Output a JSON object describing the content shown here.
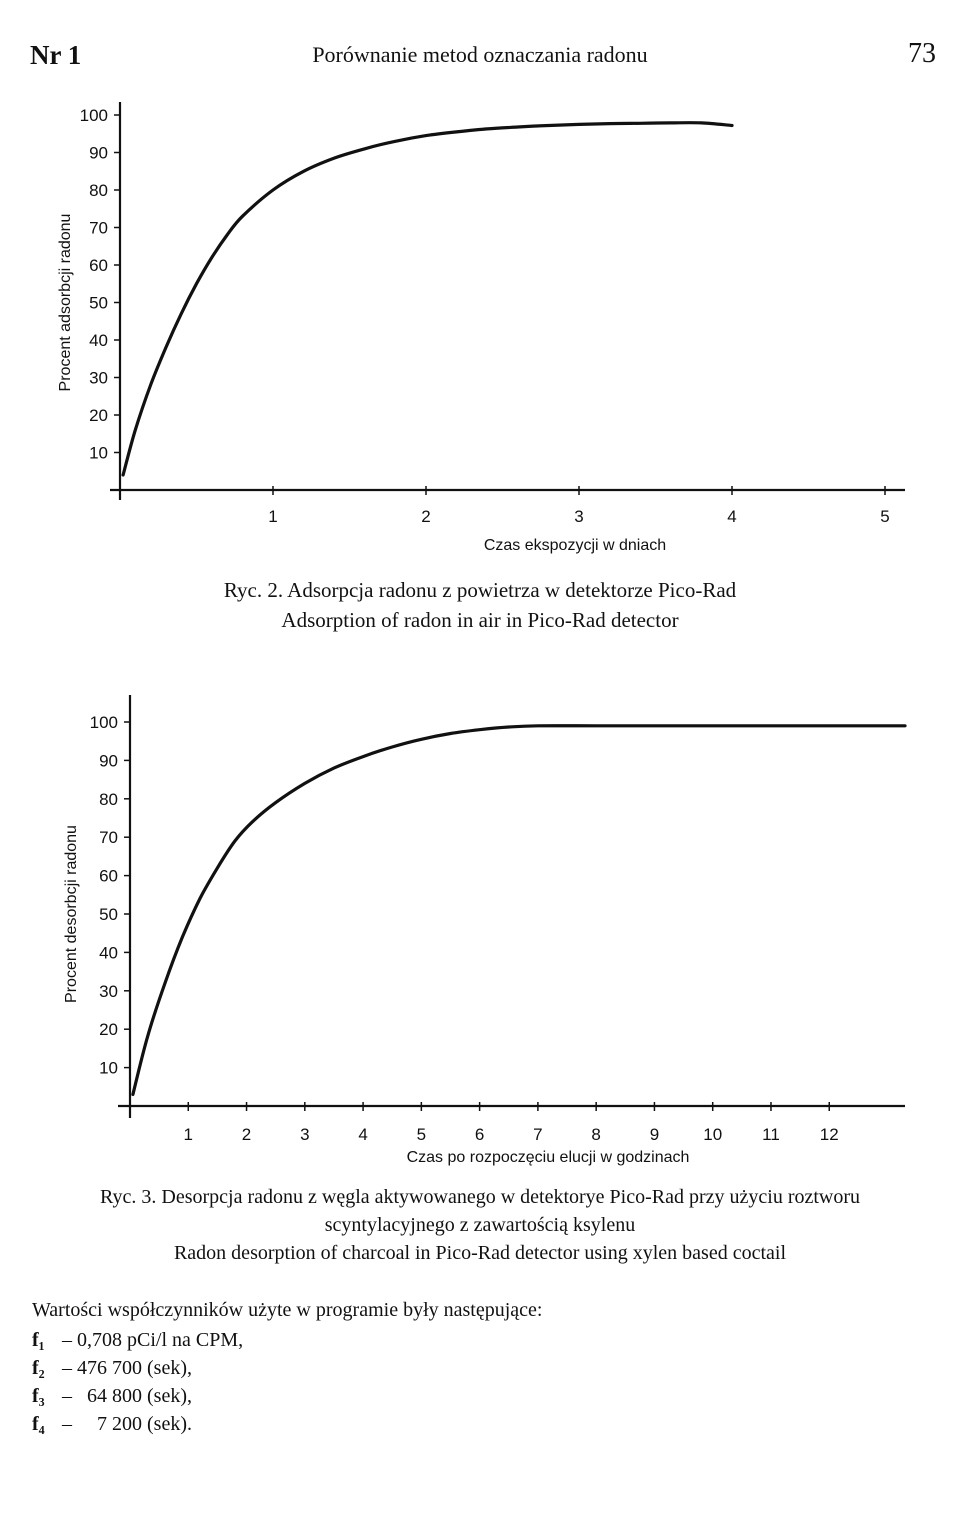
{
  "header": {
    "issue": "Nr 1",
    "running_title": "Porównanie metod oznaczania radonu",
    "page_number": "73"
  },
  "chart_data": [
    {
      "type": "line",
      "title": "",
      "xlabel": "Czas ekspozycji w dniach",
      "ylabel": "Procent adsorbcji radonu",
      "xlim": [
        0,
        5
      ],
      "ylim": [
        0,
        100
      ],
      "x_ticks": [
        "1",
        "2",
        "3",
        "4",
        "5"
      ],
      "y_ticks": [
        "10",
        "20",
        "30",
        "40",
        "50",
        "60",
        "70",
        "80",
        "90",
        "100"
      ],
      "grid": false,
      "series": [
        {
          "x": [
            0.02,
            0.1,
            0.2,
            0.3,
            0.4,
            0.5,
            0.6,
            0.7,
            0.8,
            1.0,
            1.2,
            1.4,
            1.6,
            1.8,
            2.0,
            2.2,
            2.4,
            2.6,
            2.8,
            3.0,
            3.2,
            3.4,
            3.6,
            3.8,
            4.0
          ],
          "y": [
            4,
            16,
            28,
            38,
            47,
            55,
            62,
            68,
            73,
            80,
            85,
            88.5,
            91,
            93,
            94.5,
            95.5,
            96.3,
            96.8,
            97.2,
            97.5,
            97.7,
            97.8,
            97.9,
            97.9,
            97.2
          ]
        }
      ],
      "caption_pl": "Ryc. 2. Adsorpcja radonu z powietrza w detektorze Pico-Rad",
      "caption_en": "Adsorption of radon in air in Pico-Rad detector"
    },
    {
      "type": "line",
      "title": "",
      "xlabel": "Czas po rozpoczęciu elucji w godzinach",
      "ylabel": "Procent desorbcji radonu",
      "xlim": [
        0,
        13.3
      ],
      "ylim": [
        0,
        100
      ],
      "x_ticks": [
        "1",
        "2",
        "3",
        "4",
        "5",
        "6",
        "7",
        "8",
        "9",
        "10",
        "11",
        "12"
      ],
      "y_ticks": [
        "10",
        "20",
        "30",
        "40",
        "50",
        "60",
        "70",
        "80",
        "90",
        "100"
      ],
      "grid": false,
      "series": [
        {
          "x": [
            0.05,
            0.3,
            0.6,
            0.9,
            1.2,
            1.5,
            1.8,
            2.1,
            2.5,
            3.0,
            3.5,
            4.0,
            4.5,
            5.0,
            5.5,
            6.0,
            6.5,
            7.0,
            8.0,
            9.0,
            10.0,
            11.0,
            12.0,
            13.3
          ],
          "y": [
            3,
            18,
            32,
            44,
            54,
            62,
            69,
            74,
            79,
            84,
            88,
            91,
            93.5,
            95.5,
            97,
            98,
            98.7,
            99,
            99,
            99,
            99,
            99,
            99,
            99
          ]
        }
      ],
      "caption_pl_line1": "Ryc. 3. Desorpcja radonu z węgla aktywowanego w detektorye Pico-Rad przy użyciu roztworu",
      "caption_pl_line2": "scyntylacyjnego z zawartością ksylenu",
      "caption_en": "Radon desorption of charcoal in Pico-Rad detector using xylen based coctail"
    }
  ],
  "coefficients": {
    "intro": "Wartości współczynników użyte w programie były następujące:",
    "items": [
      {
        "symbol": "f₁",
        "value": "– 0,708 pCi/l na CPM,"
      },
      {
        "symbol": "f₂",
        "value": "– 476 700 (sek),"
      },
      {
        "symbol": "f₃",
        "value": "–   64 800 (sek),"
      },
      {
        "symbol": "f₄",
        "value": "–     7 200 (sek)."
      }
    ]
  }
}
